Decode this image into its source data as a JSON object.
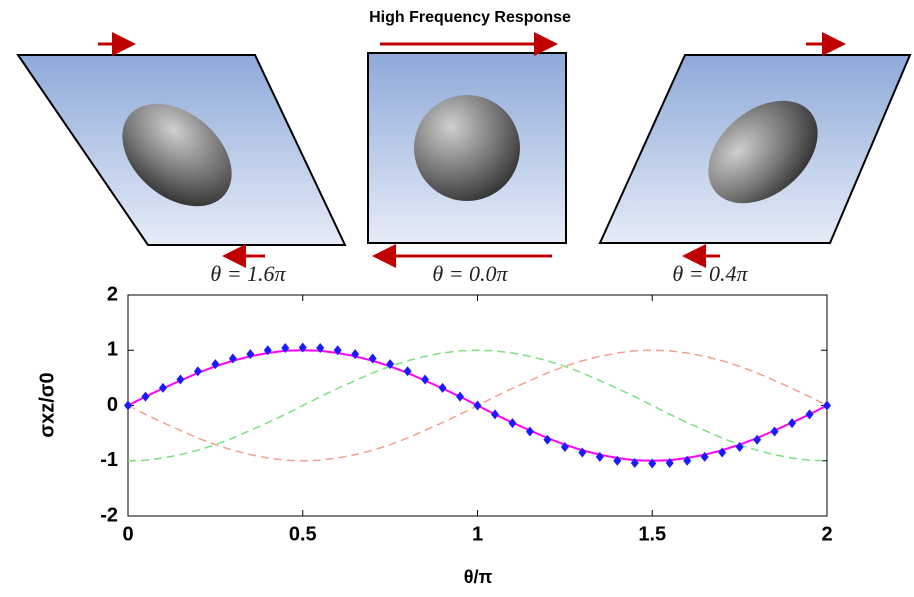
{
  "chart_data": {
    "type": "line",
    "title": "High Frequency Response",
    "panel_labels": [
      "θ = 1.6π",
      "θ = 0.0π",
      "θ = 0.4π"
    ],
    "xlabel": "θ/π",
    "ylabel": "σxz/σ0",
    "x": [
      0,
      0.05,
      0.1,
      0.15,
      0.2,
      0.25,
      0.3,
      0.35,
      0.4,
      0.45,
      0.5,
      0.55,
      0.6,
      0.65,
      0.7,
      0.75,
      0.8,
      0.85,
      0.9,
      0.95,
      1,
      1.05,
      1.1,
      1.15,
      1.2,
      1.25,
      1.3,
      1.35,
      1.4,
      1.45,
      1.5,
      1.55,
      1.6,
      1.65,
      1.7,
      1.75,
      1.8,
      1.85,
      1.9,
      1.95,
      2
    ],
    "series": [
      {
        "color": "#7fe07f",
        "style": "dashed",
        "values": [
          -1,
          -0.99,
          -0.95,
          -0.89,
          -0.81,
          -0.71,
          -0.59,
          -0.45,
          -0.31,
          -0.16,
          0,
          0.16,
          0.31,
          0.45,
          0.59,
          0.71,
          0.81,
          0.89,
          0.95,
          0.99,
          1,
          0.99,
          0.95,
          0.89,
          0.81,
          0.71,
          0.59,
          0.45,
          0.31,
          0.16,
          0,
          -0.16,
          -0.31,
          -0.45,
          -0.59,
          -0.71,
          -0.81,
          -0.89,
          -0.95,
          -0.99,
          -1
        ]
      },
      {
        "color": "#f4a090",
        "style": "dashed",
        "values": [
          0,
          -0.16,
          -0.31,
          -0.45,
          -0.59,
          -0.71,
          -0.81,
          -0.89,
          -0.95,
          -0.99,
          -1,
          -0.99,
          -0.95,
          -0.89,
          -0.81,
          -0.71,
          -0.59,
          -0.45,
          -0.31,
          -0.16,
          0,
          0.16,
          0.31,
          0.45,
          0.59,
          0.71,
          0.81,
          0.89,
          0.95,
          0.99,
          1,
          0.99,
          0.95,
          0.89,
          0.81,
          0.71,
          0.59,
          0.45,
          0.31,
          0.16,
          0
        ]
      },
      {
        "color": "#ff00ff",
        "style": "solid",
        "values": [
          0,
          0.16,
          0.31,
          0.45,
          0.59,
          0.71,
          0.81,
          0.89,
          0.95,
          0.99,
          1,
          0.99,
          0.95,
          0.89,
          0.81,
          0.71,
          0.59,
          0.45,
          0.31,
          0.16,
          0,
          -0.16,
          -0.31,
          -0.45,
          -0.59,
          -0.71,
          -0.81,
          -0.89,
          -0.95,
          -0.99,
          -1,
          -0.99,
          -0.95,
          -0.89,
          -0.81,
          -0.71,
          -0.59,
          -0.45,
          -0.31,
          -0.16,
          0
        ]
      },
      {
        "color": "#1a1aff",
        "style": "markers",
        "values": [
          0,
          0.16,
          0.32,
          0.47,
          0.62,
          0.75,
          0.85,
          0.93,
          1,
          1.04,
          1.05,
          1.04,
          1,
          0.93,
          0.85,
          0.75,
          0.62,
          0.47,
          0.32,
          0.16,
          0,
          -0.16,
          -0.32,
          -0.47,
          -0.62,
          -0.75,
          -0.85,
          -0.93,
          -1,
          -1.04,
          -1.05,
          -1.04,
          -1,
          -0.93,
          -0.85,
          -0.75,
          -0.62,
          -0.47,
          -0.32,
          -0.16,
          0
        ]
      }
    ],
    "xlim": [
      0,
      2
    ],
    "xticks": [
      0,
      0.5,
      1,
      1.5,
      2
    ],
    "ylim": [
      -2,
      2
    ],
    "yticks": [
      -2,
      -1,
      0,
      1,
      2
    ]
  }
}
